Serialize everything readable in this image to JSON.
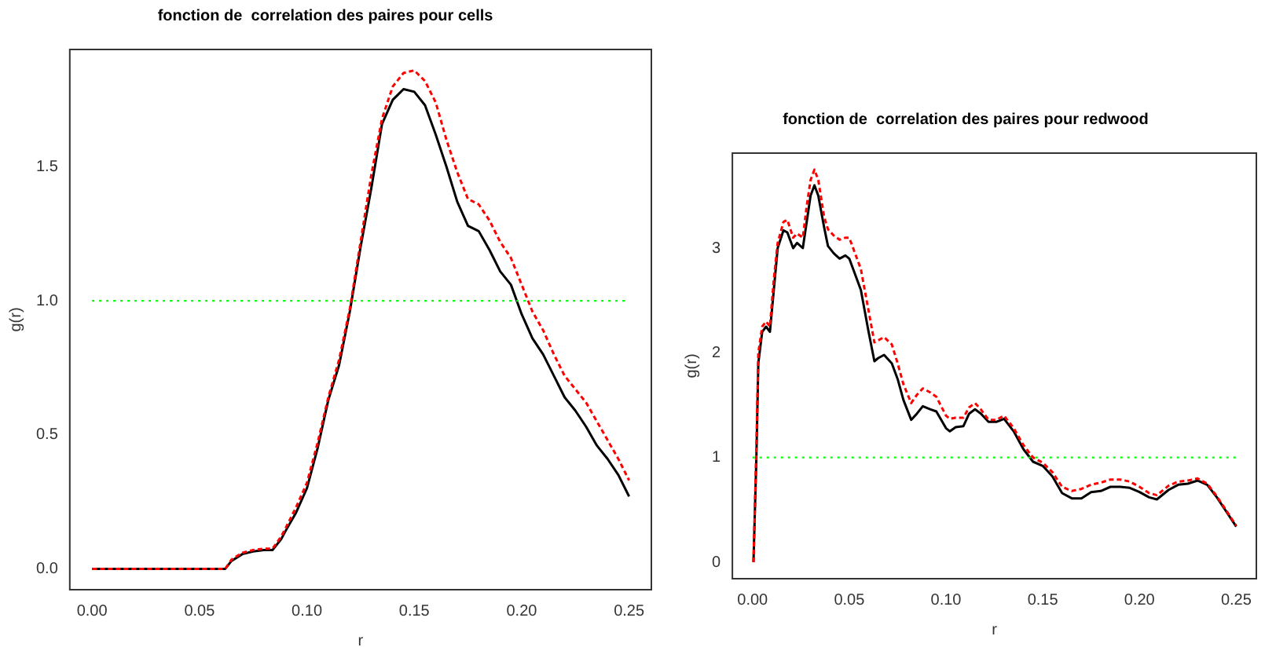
{
  "chart_data": [
    {
      "type": "line",
      "title": "fonction de  correlation des paires pour cells",
      "xlabel": "r",
      "ylabel": "g(r)",
      "x": [
        0,
        0.062,
        0.065,
        0.07,
        0.075,
        0.08,
        0.084,
        0.088,
        0.09,
        0.095,
        0.1,
        0.105,
        0.11,
        0.115,
        0.12,
        0.125,
        0.13,
        0.135,
        0.14,
        0.145,
        0.15,
        0.155,
        0.16,
        0.165,
        0.17,
        0.175,
        0.18,
        0.185,
        0.19,
        0.195,
        0.2,
        0.205,
        0.21,
        0.215,
        0.22,
        0.225,
        0.23,
        0.235,
        0.24,
        0.245,
        0.25
      ],
      "series": [
        {
          "color": "#000000",
          "line_style": "solid",
          "values": [
            0,
            0,
            0.03,
            0.055,
            0.065,
            0.07,
            0.07,
            0.11,
            0.14,
            0.21,
            0.3,
            0.45,
            0.63,
            0.76,
            0.96,
            1.2,
            1.42,
            1.66,
            1.75,
            1.79,
            1.78,
            1.73,
            1.62,
            1.5,
            1.37,
            1.28,
            1.26,
            1.19,
            1.11,
            1.06,
            0.95,
            0.86,
            0.8,
            0.72,
            0.64,
            0.59,
            0.53,
            0.46,
            0.41,
            0.35,
            0.27
          ]
        },
        {
          "color": "#ff0000",
          "line_style": "dashed",
          "values": [
            0,
            0,
            0.035,
            0.06,
            0.07,
            0.075,
            0.075,
            0.12,
            0.15,
            0.23,
            0.32,
            0.47,
            0.64,
            0.78,
            0.97,
            1.22,
            1.47,
            1.68,
            1.8,
            1.85,
            1.86,
            1.82,
            1.74,
            1.6,
            1.48,
            1.38,
            1.36,
            1.3,
            1.22,
            1.16,
            1.06,
            0.96,
            0.89,
            0.8,
            0.72,
            0.67,
            0.62,
            0.55,
            0.48,
            0.41,
            0.33
          ]
        }
      ],
      "ref_lines": [
        {
          "axis": "y",
          "value": 1,
          "color": "#00ff00",
          "line_style": "dotted"
        }
      ],
      "xlim": [
        -0.01,
        0.26
      ],
      "ylim": [
        -0.075,
        1.935
      ],
      "xticks": [
        {
          "value": 0,
          "label": "0.00"
        },
        0.05,
        {
          "value": 0.1,
          "label": "0.10"
        },
        0.15,
        {
          "value": 0.2,
          "label": "0.20"
        },
        0.25
      ],
      "yticks": [
        {
          "value": 0,
          "label": "0.0"
        },
        0.5,
        {
          "value": 1,
          "label": "1.0"
        },
        1.5
      ],
      "grid": false,
      "legend": false,
      "marker": "none"
    },
    {
      "type": "line",
      "title": "fonction de  correlation des paires pour redwood",
      "xlabel": "r",
      "ylabel": "g(r)",
      "x": [
        0.0005,
        0.002,
        0.003,
        0.005,
        0.007,
        0.009,
        0.011,
        0.013,
        0.016,
        0.018,
        0.021,
        0.023,
        0.026,
        0.028,
        0.03,
        0.032,
        0.034,
        0.037,
        0.039,
        0.042,
        0.045,
        0.048,
        0.05,
        0.053,
        0.056,
        0.06,
        0.063,
        0.065,
        0.068,
        0.072,
        0.075,
        0.078,
        0.082,
        0.085,
        0.088,
        0.092,
        0.095,
        0.1,
        0.102,
        0.105,
        0.109,
        0.112,
        0.115,
        0.118,
        0.122,
        0.126,
        0.13,
        0.135,
        0.14,
        0.145,
        0.15,
        0.155,
        0.16,
        0.165,
        0.17,
        0.175,
        0.18,
        0.185,
        0.19,
        0.195,
        0.2,
        0.205,
        0.209,
        0.215,
        0.22,
        0.225,
        0.23,
        0.235,
        0.24,
        0.245,
        0.25
      ],
      "series": [
        {
          "color": "#000000",
          "line_style": "solid",
          "values": [
            0,
            1.0,
            1.9,
            2.2,
            2.25,
            2.2,
            2.6,
            3.0,
            3.17,
            3.15,
            3.0,
            3.05,
            3.0,
            3.25,
            3.5,
            3.6,
            3.5,
            3.2,
            3.02,
            2.95,
            2.9,
            2.93,
            2.9,
            2.75,
            2.6,
            2.2,
            1.92,
            1.95,
            1.98,
            1.9,
            1.75,
            1.55,
            1.36,
            1.42,
            1.49,
            1.46,
            1.44,
            1.28,
            1.25,
            1.29,
            1.3,
            1.42,
            1.46,
            1.42,
            1.34,
            1.34,
            1.37,
            1.25,
            1.08,
            0.96,
            0.92,
            0.82,
            0.66,
            0.61,
            0.61,
            0.67,
            0.68,
            0.72,
            0.72,
            0.71,
            0.67,
            0.62,
            0.6,
            0.69,
            0.74,
            0.75,
            0.78,
            0.74,
            0.62,
            0.48,
            0.34
          ]
        },
        {
          "color": "#ff0000",
          "line_style": "dashed",
          "values": [
            0,
            1.1,
            2.0,
            2.25,
            2.3,
            2.25,
            2.7,
            3.05,
            3.25,
            3.27,
            3.1,
            3.14,
            3.1,
            3.4,
            3.65,
            3.75,
            3.65,
            3.3,
            3.18,
            3.12,
            3.08,
            3.1,
            3.1,
            2.95,
            2.8,
            2.4,
            2.1,
            2.12,
            2.15,
            2.08,
            1.9,
            1.7,
            1.52,
            1.6,
            1.66,
            1.62,
            1.58,
            1.4,
            1.37,
            1.38,
            1.38,
            1.48,
            1.52,
            1.46,
            1.36,
            1.36,
            1.4,
            1.28,
            1.12,
            1.0,
            0.95,
            0.86,
            0.72,
            0.68,
            0.7,
            0.74,
            0.76,
            0.79,
            0.79,
            0.77,
            0.72,
            0.66,
            0.64,
            0.73,
            0.77,
            0.78,
            0.8,
            0.75,
            0.63,
            0.49,
            0.35
          ]
        }
      ],
      "ref_lines": [
        {
          "axis": "y",
          "value": 1,
          "color": "#00ff00",
          "line_style": "dotted"
        }
      ],
      "xlim": [
        -0.01,
        0.26
      ],
      "ylim": [
        -0.15,
        3.9
      ],
      "xticks": [
        {
          "value": 0,
          "label": "0.00"
        },
        0.05,
        {
          "value": 0.1,
          "label": "0.10"
        },
        0.15,
        {
          "value": 0.2,
          "label": "0.20"
        },
        0.25
      ],
      "yticks": [
        0,
        1,
        2,
        3
      ],
      "grid": false,
      "legend": false,
      "marker": "none"
    }
  ]
}
